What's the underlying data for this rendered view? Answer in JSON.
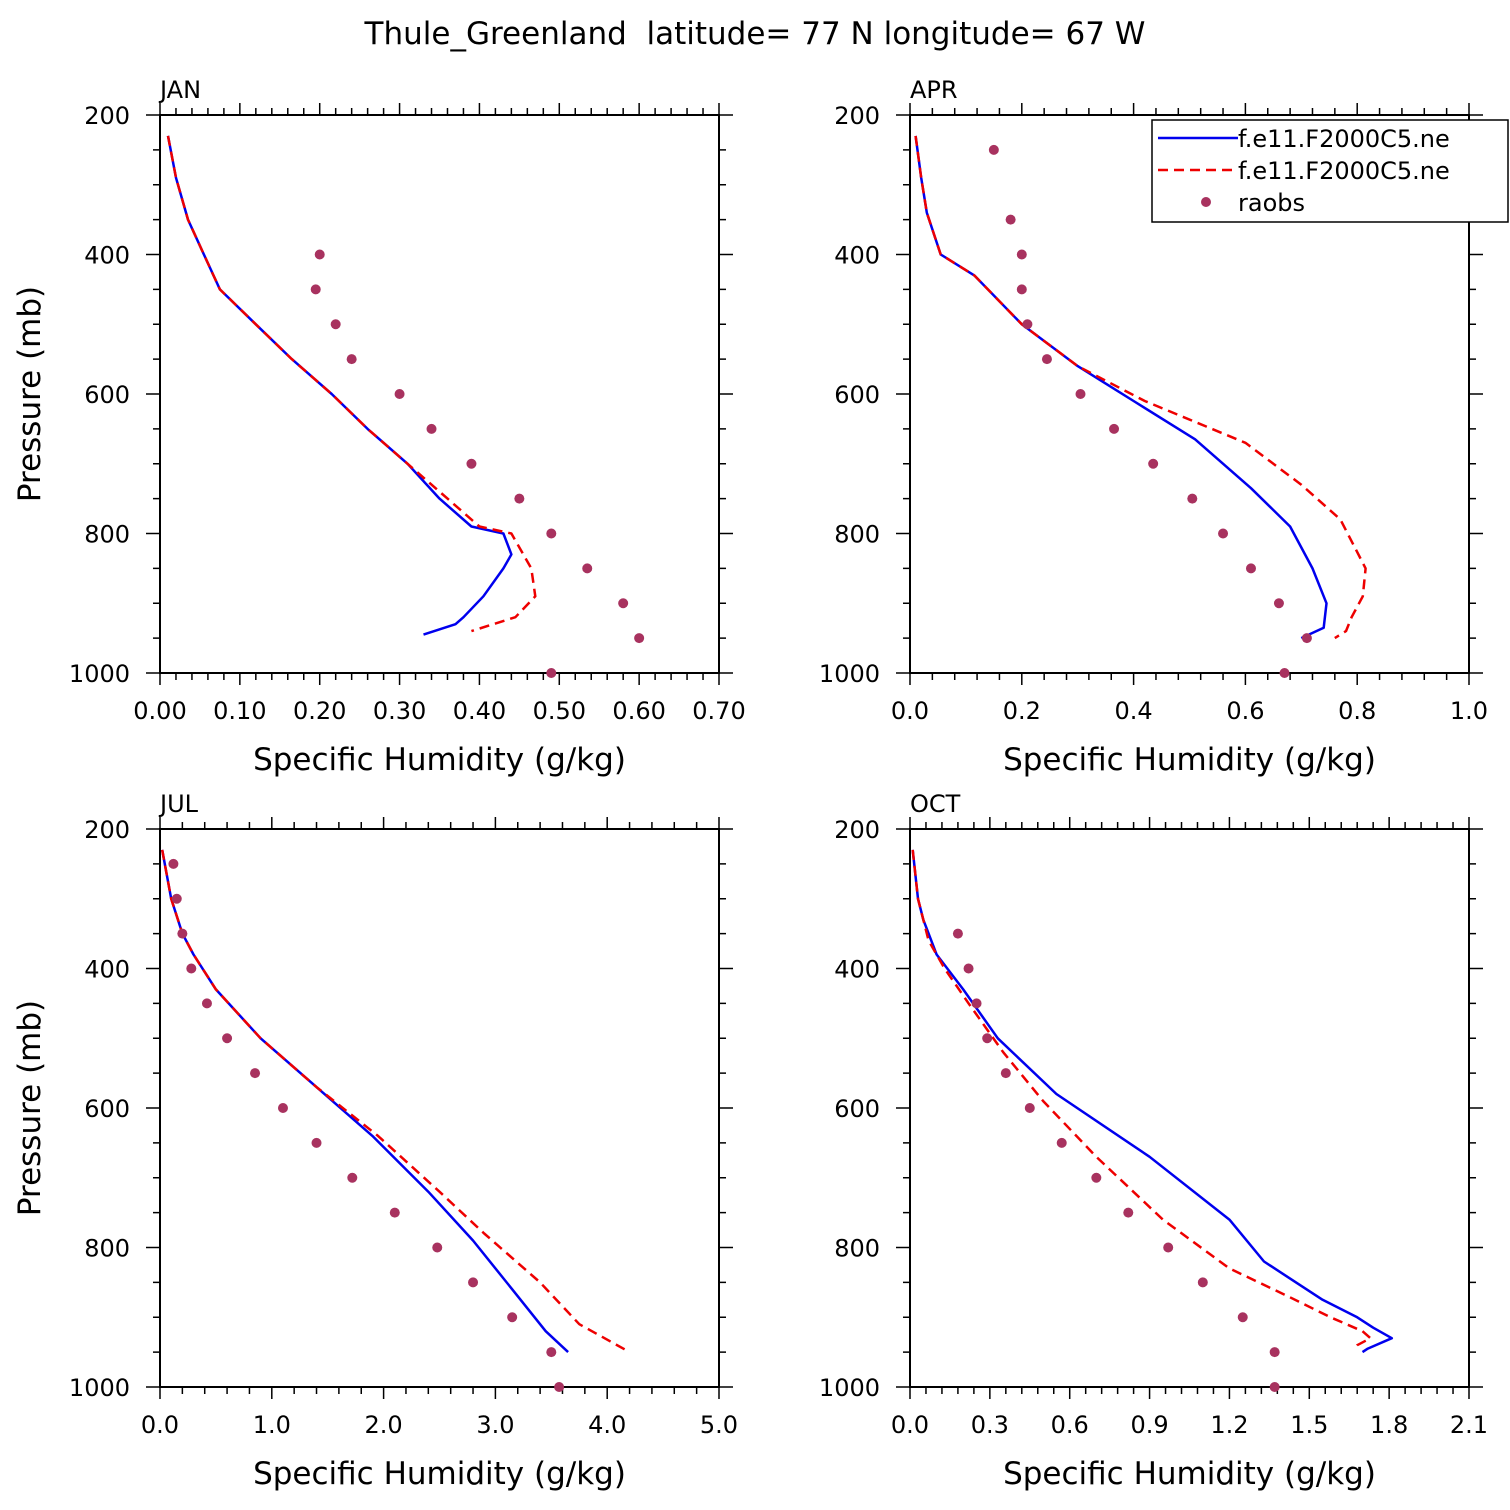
{
  "figure": {
    "title": "Thule_Greenland  latitude= 77 N longitude= 67 W",
    "ylabel": "Pressure (mb)",
    "xlabel": "Specific Humidity (g/kg)",
    "colors": {
      "model1": "#0000ee",
      "model2": "#ee0000",
      "raobs": "#a8325f"
    },
    "legend": {
      "entries": [
        "f.e11.F2000C5.ne",
        "f.e11.F2000C5.ne",
        "raobs"
      ],
      "placement": "top-right of APR panel"
    }
  },
  "chart_data": [
    {
      "type": "line",
      "panel": "JAN",
      "title": "JAN",
      "xlabel": "Specific Humidity (g/kg)",
      "ylabel": "Pressure (mb)",
      "xlim": [
        0.0,
        0.7
      ],
      "ylim": [
        1000,
        200
      ],
      "y_inverted": true,
      "xticks": [
        "0.00",
        "0.10",
        "0.20",
        "0.30",
        "0.40",
        "0.50",
        "0.60",
        "0.70"
      ],
      "yticks": [
        "200",
        "400",
        "600",
        "800",
        "1000"
      ],
      "series": [
        {
          "style": "solid",
          "color": "#0000ee",
          "points": [
            [
              0.01,
              230
            ],
            [
              0.02,
              290
            ],
            [
              0.035,
              350
            ],
            [
              0.055,
              400
            ],
            [
              0.075,
              450
            ],
            [
              0.12,
              500
            ],
            [
              0.165,
              550
            ],
            [
              0.215,
              600
            ],
            [
              0.26,
              650
            ],
            [
              0.31,
              700
            ],
            [
              0.35,
              750
            ],
            [
              0.39,
              790
            ],
            [
              0.43,
              800
            ],
            [
              0.44,
              830
            ],
            [
              0.43,
              850
            ],
            [
              0.405,
              890
            ],
            [
              0.38,
              920
            ],
            [
              0.37,
              930
            ],
            [
              0.33,
              945
            ]
          ]
        },
        {
          "style": "dashed",
          "color": "#ee0000",
          "points": [
            [
              0.01,
              230
            ],
            [
              0.02,
              290
            ],
            [
              0.035,
              350
            ],
            [
              0.055,
              400
            ],
            [
              0.075,
              450
            ],
            [
              0.12,
              500
            ],
            [
              0.165,
              550
            ],
            [
              0.215,
              600
            ],
            [
              0.26,
              650
            ],
            [
              0.31,
              700
            ],
            [
              0.36,
              750
            ],
            [
              0.4,
              790
            ],
            [
              0.44,
              800
            ],
            [
              0.465,
              850
            ],
            [
              0.47,
              890
            ],
            [
              0.445,
              920
            ],
            [
              0.39,
              940
            ]
          ]
        }
      ],
      "raobs": [
        [
          0.2,
          400
        ],
        [
          0.195,
          450
        ],
        [
          0.22,
          500
        ],
        [
          0.24,
          550
        ],
        [
          0.3,
          600
        ],
        [
          0.34,
          650
        ],
        [
          0.39,
          700
        ],
        [
          0.45,
          750
        ],
        [
          0.49,
          800
        ],
        [
          0.535,
          850
        ],
        [
          0.58,
          900
        ],
        [
          0.6,
          950
        ],
        [
          0.49,
          1000
        ]
      ]
    },
    {
      "type": "line",
      "panel": "APR",
      "title": "APR",
      "xlabel": "Specific Humidity (g/kg)",
      "ylabel": "Pressure (mb)",
      "xlim": [
        0.0,
        1.0
      ],
      "ylim": [
        1000,
        200
      ],
      "y_inverted": true,
      "xticks": [
        "0.0",
        "0.2",
        "0.4",
        "0.6",
        "0.8",
        "1.0"
      ],
      "yticks": [
        "200",
        "400",
        "600",
        "800",
        "1000"
      ],
      "series": [
        {
          "name": "f.e11.F2000C5.ne",
          "style": "solid",
          "color": "#0000ee",
          "points": [
            [
              0.01,
              230
            ],
            [
              0.02,
              290
            ],
            [
              0.03,
              340
            ],
            [
              0.055,
              400
            ],
            [
              0.115,
              430
            ],
            [
              0.2,
              500
            ],
            [
              0.3,
              560
            ],
            [
              0.4,
              610
            ],
            [
              0.51,
              665
            ],
            [
              0.61,
              735
            ],
            [
              0.68,
              790
            ],
            [
              0.72,
              850
            ],
            [
              0.745,
              900
            ],
            [
              0.74,
              935
            ],
            [
              0.7,
              950
            ]
          ]
        },
        {
          "name": "f.e11.F2000C5.ne",
          "style": "dashed",
          "color": "#ee0000",
          "points": [
            [
              0.01,
              230
            ],
            [
              0.02,
              290
            ],
            [
              0.03,
              340
            ],
            [
              0.055,
              400
            ],
            [
              0.115,
              430
            ],
            [
              0.2,
              500
            ],
            [
              0.3,
              560
            ],
            [
              0.42,
              610
            ],
            [
              0.6,
              670
            ],
            [
              0.7,
              730
            ],
            [
              0.77,
              780
            ],
            [
              0.815,
              850
            ],
            [
              0.81,
              890
            ],
            [
              0.79,
              920
            ],
            [
              0.78,
              940
            ],
            [
              0.76,
              950
            ]
          ]
        }
      ],
      "raobs": [
        [
          0.15,
          250
        ],
        [
          0.18,
          350
        ],
        [
          0.2,
          400
        ],
        [
          0.2,
          450
        ],
        [
          0.21,
          500
        ],
        [
          0.245,
          550
        ],
        [
          0.305,
          600
        ],
        [
          0.365,
          650
        ],
        [
          0.435,
          700
        ],
        [
          0.505,
          750
        ],
        [
          0.56,
          800
        ],
        [
          0.61,
          850
        ],
        [
          0.66,
          900
        ],
        [
          0.71,
          950
        ],
        [
          0.67,
          1000
        ]
      ]
    },
    {
      "type": "line",
      "panel": "JUL",
      "title": "JUL",
      "xlabel": "Specific Humidity (g/kg)",
      "ylabel": "Pressure (mb)",
      "xlim": [
        0.0,
        5.0
      ],
      "ylim": [
        1000,
        200
      ],
      "y_inverted": true,
      "xticks": [
        "0.0",
        "1.0",
        "2.0",
        "3.0",
        "4.0",
        "5.0"
      ],
      "yticks": [
        "200",
        "400",
        "600",
        "800",
        "1000"
      ],
      "series": [
        {
          "style": "solid",
          "color": "#0000ee",
          "points": [
            [
              0.02,
              230
            ],
            [
              0.1,
              300
            ],
            [
              0.2,
              350
            ],
            [
              0.3,
              380
            ],
            [
              0.5,
              430
            ],
            [
              0.9,
              500
            ],
            [
              1.4,
              570
            ],
            [
              1.9,
              640
            ],
            [
              2.4,
              720
            ],
            [
              2.8,
              790
            ],
            [
              3.15,
              860
            ],
            [
              3.45,
              920
            ],
            [
              3.65,
              950
            ]
          ]
        },
        {
          "style": "dashed",
          "color": "#ee0000",
          "points": [
            [
              0.02,
              230
            ],
            [
              0.1,
              300
            ],
            [
              0.2,
              350
            ],
            [
              0.3,
              380
            ],
            [
              0.5,
              430
            ],
            [
              0.9,
              500
            ],
            [
              1.4,
              570
            ],
            [
              1.95,
              640
            ],
            [
              2.5,
              720
            ],
            [
              2.9,
              780
            ],
            [
              3.4,
              850
            ],
            [
              3.75,
              910
            ],
            [
              4.2,
              950
            ]
          ]
        }
      ],
      "raobs": [
        [
          0.12,
          250
        ],
        [
          0.15,
          300
        ],
        [
          0.2,
          350
        ],
        [
          0.28,
          400
        ],
        [
          0.42,
          450
        ],
        [
          0.6,
          500
        ],
        [
          0.85,
          550
        ],
        [
          1.1,
          600
        ],
        [
          1.4,
          650
        ],
        [
          1.72,
          700
        ],
        [
          2.1,
          750
        ],
        [
          2.48,
          800
        ],
        [
          2.8,
          850
        ],
        [
          3.15,
          900
        ],
        [
          3.5,
          950
        ],
        [
          3.57,
          1000
        ]
      ]
    },
    {
      "type": "line",
      "panel": "OCT",
      "title": "OCT",
      "xlabel": "Specific Humidity (g/kg)",
      "ylabel": "Pressure (mb)",
      "xlim": [
        0.0,
        2.1
      ],
      "ylim": [
        1000,
        200
      ],
      "y_inverted": true,
      "xticks": [
        "0.0",
        "0.3",
        "0.6",
        "0.9",
        "1.2",
        "1.5",
        "1.8",
        "2.1"
      ],
      "yticks": [
        "200",
        "400",
        "600",
        "800",
        "1000"
      ],
      "series": [
        {
          "style": "solid",
          "color": "#0000ee",
          "points": [
            [
              0.01,
              230
            ],
            [
              0.03,
              300
            ],
            [
              0.05,
              330
            ],
            [
              0.1,
              380
            ],
            [
              0.2,
              430
            ],
            [
              0.33,
              500
            ],
            [
              0.55,
              580
            ],
            [
              0.9,
              670
            ],
            [
              1.2,
              760
            ],
            [
              1.33,
              820
            ],
            [
              1.45,
              850
            ],
            [
              1.55,
              875
            ],
            [
              1.68,
              900
            ],
            [
              1.74,
              915
            ],
            [
              1.81,
              930
            ],
            [
              1.72,
              945
            ],
            [
              1.7,
              950
            ]
          ]
        },
        {
          "style": "dashed",
          "color": "#ee0000",
          "points": [
            [
              0.01,
              230
            ],
            [
              0.03,
              300
            ],
            [
              0.05,
              330
            ],
            [
              0.07,
              360
            ],
            [
              0.13,
              400
            ],
            [
              0.22,
              450
            ],
            [
              0.35,
              520
            ],
            [
              0.5,
              590
            ],
            [
              0.7,
              670
            ],
            [
              0.95,
              760
            ],
            [
              1.2,
              830
            ],
            [
              1.42,
              870
            ],
            [
              1.58,
              900
            ],
            [
              1.7,
              920
            ],
            [
              1.73,
              930
            ],
            [
              1.68,
              940
            ],
            [
              1.67,
              945
            ]
          ]
        }
      ],
      "raobs": [
        [
          0.18,
          350
        ],
        [
          0.22,
          400
        ],
        [
          0.25,
          450
        ],
        [
          0.29,
          500
        ],
        [
          0.36,
          550
        ],
        [
          0.45,
          600
        ],
        [
          0.57,
          650
        ],
        [
          0.7,
          700
        ],
        [
          0.82,
          750
        ],
        [
          0.97,
          800
        ],
        [
          1.1,
          850
        ],
        [
          1.25,
          900
        ],
        [
          1.37,
          950
        ],
        [
          1.37,
          1000
        ]
      ]
    }
  ]
}
